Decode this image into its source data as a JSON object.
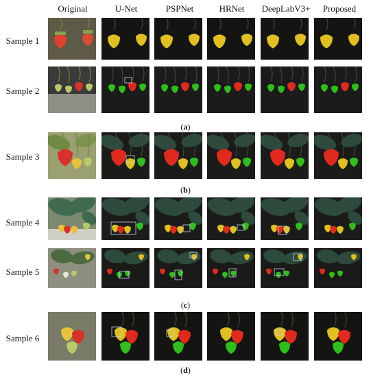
{
  "columns": [
    "Original",
    "U-Net",
    "PSPNet",
    "HRNet",
    "DeepLabV3+",
    "Proposed"
  ],
  "samples": [
    {
      "label": "Sample 1",
      "scene": "s1"
    },
    {
      "label": "Sample 2",
      "scene": "s2"
    },
    {
      "label": "Sample 3",
      "scene": "s3"
    },
    {
      "label": "Sample 4",
      "scene": "s4"
    },
    {
      "label": "Sample 5",
      "scene": "s5"
    },
    {
      "label": "Sample 6",
      "scene": "s6"
    }
  ],
  "captions": {
    "a": {
      "open": "(",
      "letter": "a",
      "close": ")"
    },
    "b": {
      "open": "(",
      "letter": "b",
      "close": ")"
    },
    "c": {
      "open": "(",
      "letter": "c",
      "close": ")"
    },
    "d": {
      "open": "(",
      "letter": "d",
      "close": ")"
    }
  },
  "colors": {
    "ripe_red": "#e02a1e",
    "ripe_yellow": "#e0c020",
    "unripe_green": "#2fbf1a",
    "background_dark": "#1c1d1c",
    "leaf_dark": "#2d4a3c",
    "box_outline": "#c8d6f0"
  }
}
